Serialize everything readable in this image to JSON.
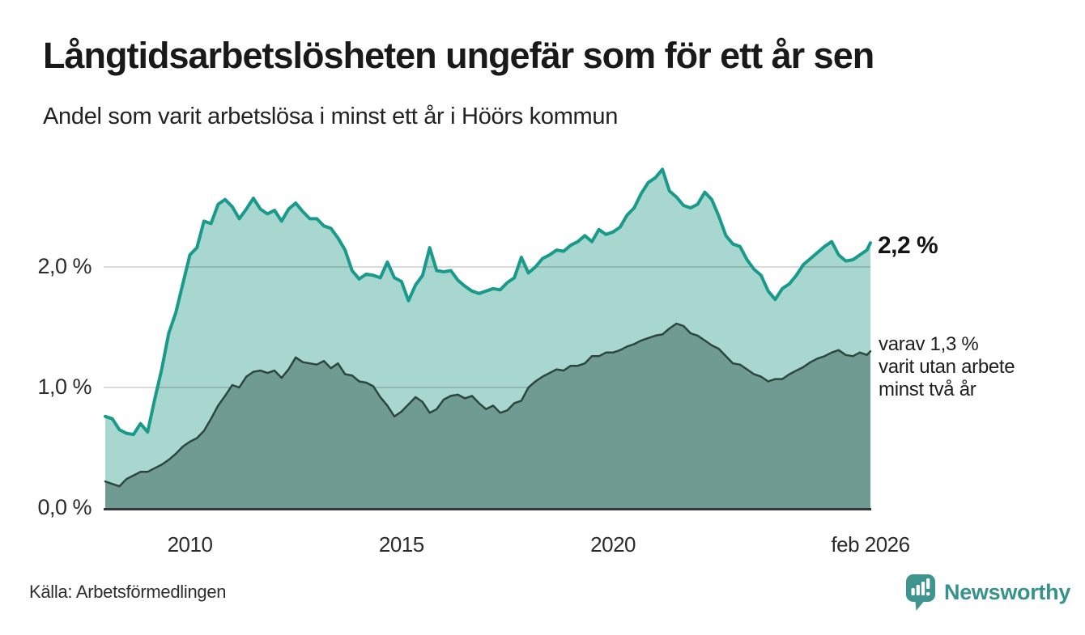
{
  "header": {
    "title": "Långtidsarbetslösheten ungefär som för ett år sen",
    "subtitle": "Andel som varit arbetslösa i minst ett år i Höörs kommun"
  },
  "chart_data": {
    "type": "area",
    "title": "Långtidsarbetslösheten ungefär som för ett år sen",
    "subtitle": "Andel som varit arbetslösa i minst ett år i Höörs kommun",
    "x_unit": "year (monthly series)",
    "x_range": [
      2008.0,
      2026.083
    ],
    "y_range": [
      0,
      2.9
    ],
    "grid": "horizontal",
    "colors": {
      "total_line": "#199A8B",
      "total_fill": "#A7D7CF",
      "two_year_line": "#2D473F",
      "two_year_fill": "#6F9B92",
      "gridline": "rgba(0,0,0,0.14)",
      "axis_line": "#33383C"
    },
    "x_ticks": [
      {
        "v": 2010,
        "label": "2010"
      },
      {
        "v": 2015,
        "label": "2015"
      },
      {
        "v": 2020,
        "label": "2020"
      },
      {
        "v": 2026.083,
        "label": "feb 2026"
      }
    ],
    "y_ticks": [
      {
        "v": 0,
        "label": "0,0 %",
        "grid": false
      },
      {
        "v": 1,
        "label": "1,0 %",
        "grid": true
      },
      {
        "v": 2,
        "label": "2,0 %",
        "grid": true
      }
    ],
    "x": [
      2008.0,
      2008.167,
      2008.333,
      2008.5,
      2008.667,
      2008.833,
      2009.0,
      2009.167,
      2009.333,
      2009.5,
      2009.667,
      2009.833,
      2010.0,
      2010.167,
      2010.333,
      2010.5,
      2010.667,
      2010.833,
      2011.0,
      2011.167,
      2011.333,
      2011.5,
      2011.667,
      2011.833,
      2012.0,
      2012.167,
      2012.333,
      2012.5,
      2012.667,
      2012.833,
      2013.0,
      2013.167,
      2013.333,
      2013.5,
      2013.667,
      2013.833,
      2014.0,
      2014.167,
      2014.333,
      2014.5,
      2014.667,
      2014.833,
      2015.0,
      2015.167,
      2015.333,
      2015.5,
      2015.667,
      2015.833,
      2016.0,
      2016.167,
      2016.333,
      2016.5,
      2016.667,
      2016.833,
      2017.0,
      2017.167,
      2017.333,
      2017.5,
      2017.667,
      2017.833,
      2018.0,
      2018.167,
      2018.333,
      2018.5,
      2018.667,
      2018.833,
      2019.0,
      2019.167,
      2019.333,
      2019.5,
      2019.667,
      2019.833,
      2020.0,
      2020.167,
      2020.333,
      2020.5,
      2020.667,
      2020.833,
      2021.0,
      2021.167,
      2021.333,
      2021.5,
      2021.667,
      2021.833,
      2022.0,
      2022.167,
      2022.333,
      2022.5,
      2022.667,
      2022.833,
      2023.0,
      2023.167,
      2023.333,
      2023.5,
      2023.667,
      2023.833,
      2024.0,
      2024.167,
      2024.333,
      2024.5,
      2024.667,
      2024.833,
      2025.0,
      2025.167,
      2025.333,
      2025.5,
      2025.667,
      2025.833,
      2026.0,
      2026.083
    ],
    "series": [
      {
        "name": "Andel arbetslösa minst ett år",
        "end_value_label": "2,2 %",
        "values": [
          0.76,
          0.74,
          0.65,
          0.62,
          0.61,
          0.7,
          0.63,
          0.9,
          1.15,
          1.45,
          1.62,
          1.86,
          2.1,
          2.16,
          2.38,
          2.36,
          2.52,
          2.56,
          2.5,
          2.4,
          2.48,
          2.57,
          2.48,
          2.44,
          2.47,
          2.38,
          2.48,
          2.53,
          2.46,
          2.4,
          2.4,
          2.34,
          2.32,
          2.24,
          2.14,
          1.97,
          1.9,
          1.94,
          1.93,
          1.91,
          2.04,
          1.91,
          1.88,
          1.72,
          1.85,
          1.93,
          2.16,
          1.97,
          1.96,
          1.97,
          1.89,
          1.84,
          1.8,
          1.78,
          1.8,
          1.82,
          1.81,
          1.87,
          1.91,
          2.08,
          1.95,
          2.0,
          2.07,
          2.1,
          2.14,
          2.13,
          2.18,
          2.21,
          2.26,
          2.21,
          2.31,
          2.27,
          2.29,
          2.33,
          2.43,
          2.49,
          2.61,
          2.7,
          2.74,
          2.81,
          2.63,
          2.58,
          2.51,
          2.49,
          2.52,
          2.62,
          2.56,
          2.42,
          2.26,
          2.19,
          2.17,
          2.06,
          1.98,
          1.93,
          1.8,
          1.73,
          1.82,
          1.86,
          1.93,
          2.02,
          2.07,
          2.12,
          2.17,
          2.21,
          2.1,
          2.05,
          2.06,
          2.1,
          2.14,
          2.2
        ]
      },
      {
        "name": "varav utan arbete minst två år",
        "end_value_label": "varav 1,3 %",
        "values": [
          0.22,
          0.2,
          0.18,
          0.24,
          0.27,
          0.3,
          0.3,
          0.33,
          0.36,
          0.4,
          0.45,
          0.51,
          0.55,
          0.58,
          0.64,
          0.74,
          0.85,
          0.93,
          1.02,
          1.0,
          1.09,
          1.13,
          1.14,
          1.12,
          1.14,
          1.08,
          1.15,
          1.25,
          1.21,
          1.2,
          1.19,
          1.22,
          1.16,
          1.2,
          1.11,
          1.1,
          1.05,
          1.04,
          1.01,
          0.92,
          0.85,
          0.76,
          0.8,
          0.86,
          0.92,
          0.88,
          0.79,
          0.82,
          0.9,
          0.93,
          0.94,
          0.91,
          0.93,
          0.87,
          0.82,
          0.85,
          0.79,
          0.81,
          0.87,
          0.89,
          1.0,
          1.05,
          1.09,
          1.12,
          1.15,
          1.14,
          1.18,
          1.18,
          1.2,
          1.26,
          1.26,
          1.29,
          1.29,
          1.31,
          1.34,
          1.36,
          1.39,
          1.41,
          1.43,
          1.44,
          1.49,
          1.53,
          1.51,
          1.45,
          1.43,
          1.39,
          1.35,
          1.32,
          1.26,
          1.2,
          1.19,
          1.15,
          1.11,
          1.09,
          1.05,
          1.07,
          1.07,
          1.11,
          1.14,
          1.17,
          1.21,
          1.24,
          1.26,
          1.29,
          1.31,
          1.27,
          1.26,
          1.29,
          1.27,
          1.3
        ]
      }
    ],
    "annotations": [
      {
        "id": "end-total",
        "text": "2,2 %",
        "bold": true
      },
      {
        "id": "end-two-year",
        "lines": [
          "varav 1,3 %",
          "varit utan arbete",
          "minst två år"
        ]
      }
    ],
    "legend_position": "right-of-line-ends"
  },
  "footer": {
    "source": "Källa: Arbetsförmedlingen",
    "brand": "Newsworthy",
    "brand_color": "#36928B"
  }
}
